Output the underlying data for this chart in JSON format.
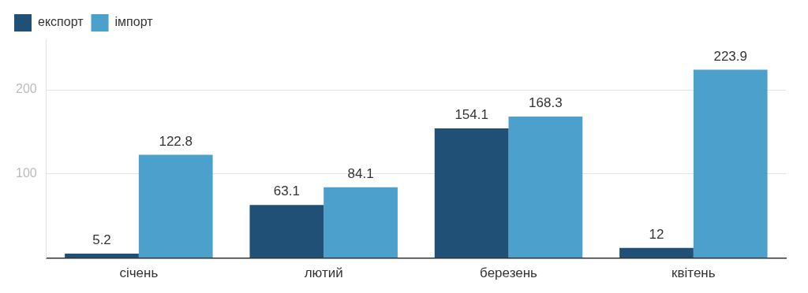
{
  "chart_data": {
    "type": "bar",
    "categories": [
      "січень",
      "лютий",
      "березень",
      "квітень"
    ],
    "series": [
      {
        "name": "експорт",
        "color": "#215077",
        "values": [
          5.2,
          63.1,
          154.1,
          12
        ]
      },
      {
        "name": "імпорт",
        "color": "#4ba0cc",
        "values": [
          122.8,
          84.1,
          168.3,
          223.9
        ]
      }
    ],
    "ylim": [
      0,
      260
    ],
    "yticks": [
      {
        "value": 0,
        "label": null
      },
      100,
      200
    ],
    "grid": "y",
    "legend": "top left",
    "data_labels": true
  }
}
